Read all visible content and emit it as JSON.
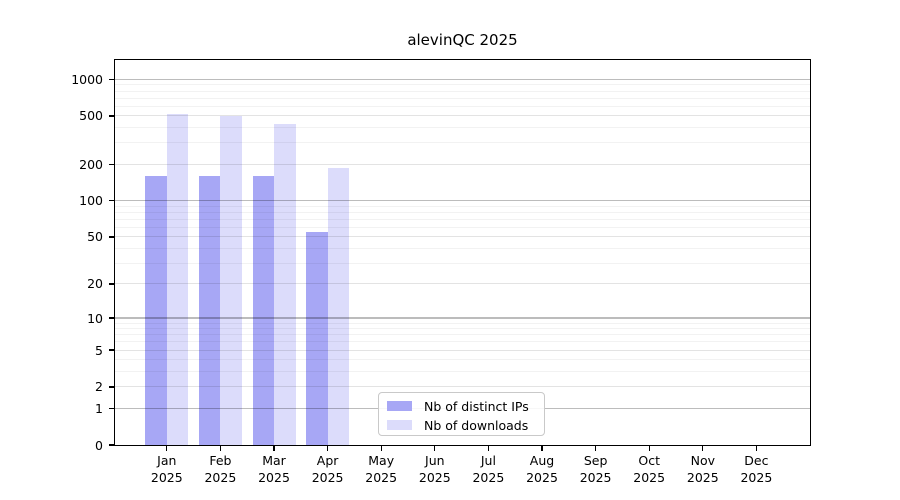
{
  "chart_data": {
    "type": "bar",
    "title": "alevinQC 2025",
    "categories": [
      {
        "month": "Jan",
        "year": "2025"
      },
      {
        "month": "Feb",
        "year": "2025"
      },
      {
        "month": "Mar",
        "year": "2025"
      },
      {
        "month": "Apr",
        "year": "2025"
      },
      {
        "month": "May",
        "year": "2025"
      },
      {
        "month": "Jun",
        "year": "2025"
      },
      {
        "month": "Jul",
        "year": "2025"
      },
      {
        "month": "Aug",
        "year": "2025"
      },
      {
        "month": "Sep",
        "year": "2025"
      },
      {
        "month": "Oct",
        "year": "2025"
      },
      {
        "month": "Nov",
        "year": "2025"
      },
      {
        "month": "Dec",
        "year": "2025"
      }
    ],
    "series": [
      {
        "name": "Nb of distinct IPs",
        "color": "#a7a7f5",
        "values": [
          160,
          159,
          159,
          55,
          null,
          null,
          null,
          null,
          null,
          null,
          null,
          null
        ]
      },
      {
        "name": "Nb of downloads",
        "color": "#dcdcfb",
        "values": [
          516,
          498,
          428,
          186,
          null,
          null,
          null,
          null,
          null,
          null,
          null,
          null
        ]
      }
    ],
    "y_axis": {
      "scale": "log1p",
      "ticks": [
        0,
        1,
        2,
        5,
        10,
        20,
        50,
        100,
        200,
        500,
        1000
      ],
      "decade_ticks": [
        1,
        10,
        100,
        1000
      ],
      "minor_ticks": [
        3,
        4,
        6,
        7,
        8,
        9,
        30,
        40,
        60,
        70,
        80,
        90,
        300,
        400,
        600,
        700,
        800,
        900
      ],
      "ylim": [
        0,
        1440
      ]
    },
    "xlabel": "",
    "ylabel": "",
    "grid": "horizontal",
    "legend_position": "lower center"
  }
}
